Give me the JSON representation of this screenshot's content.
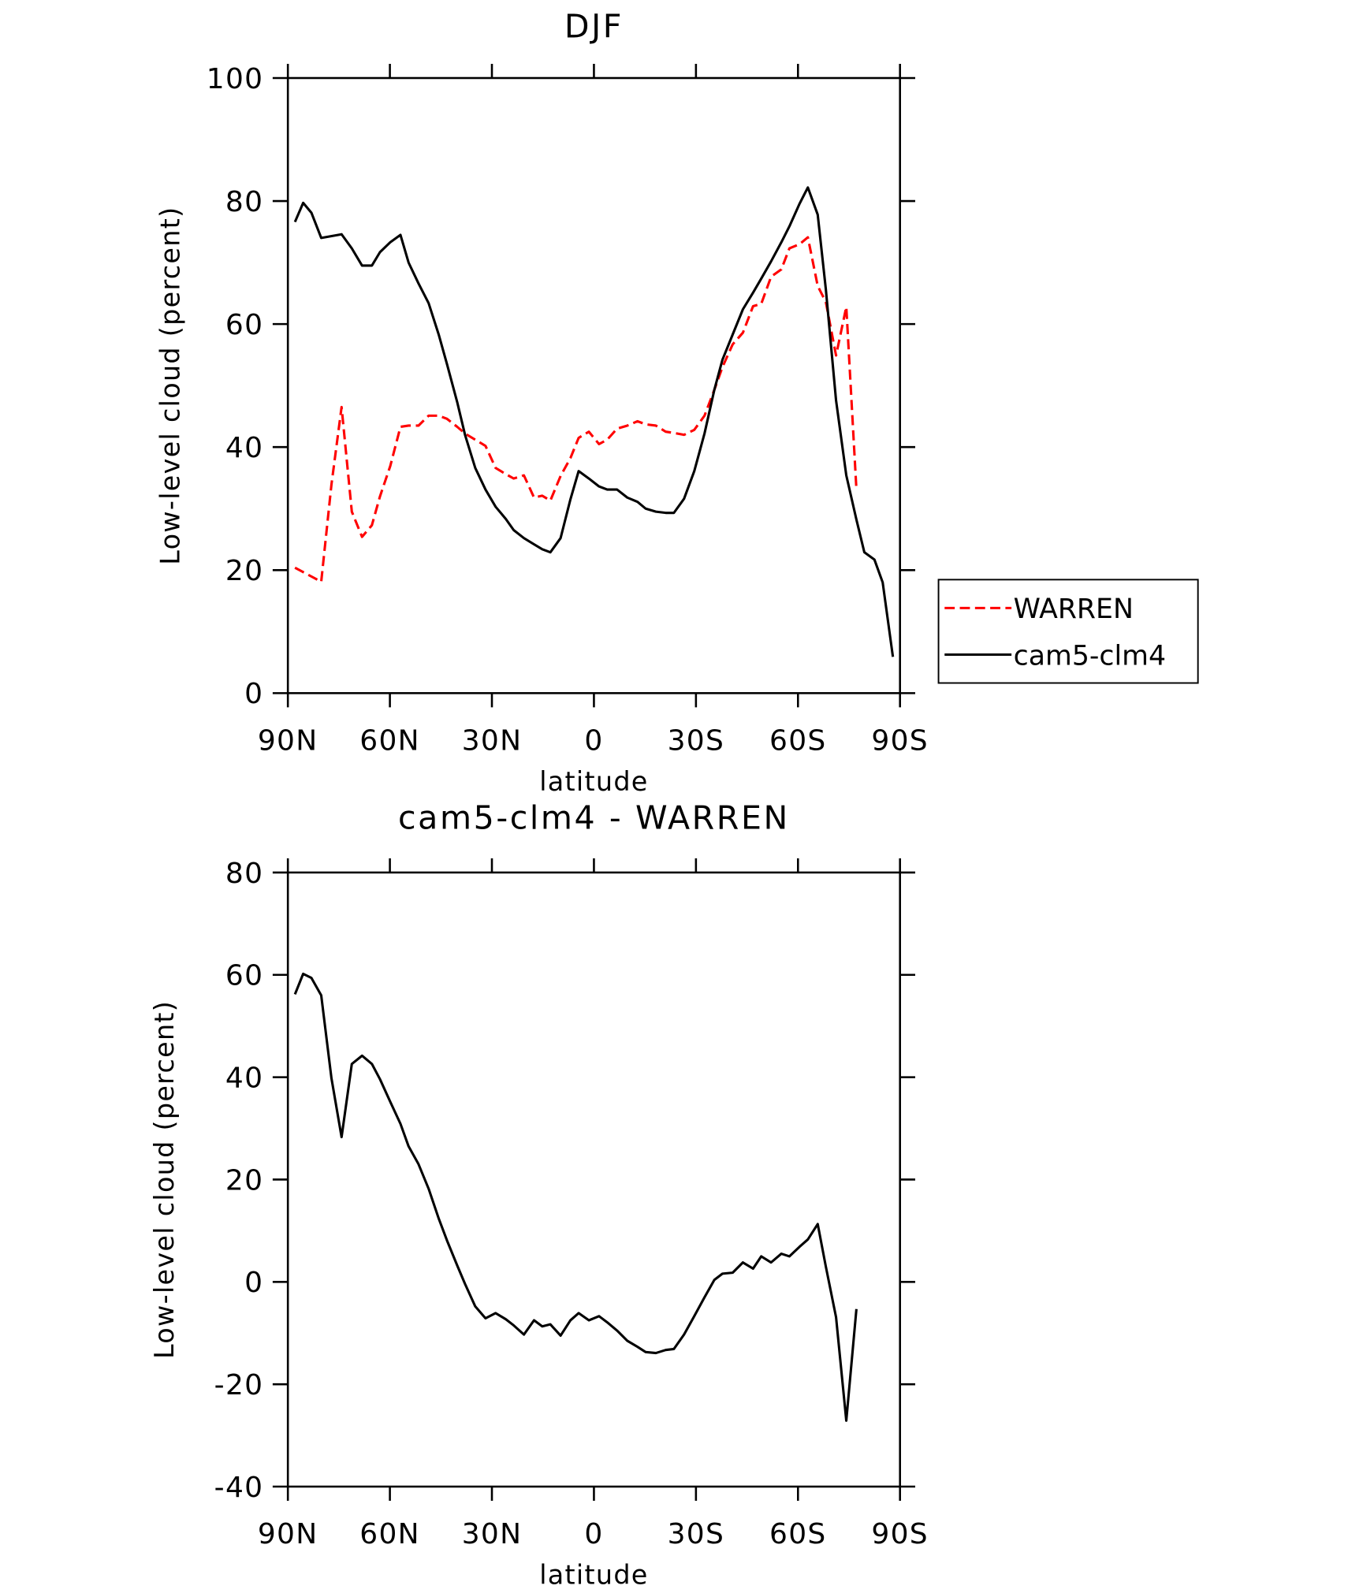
{
  "chart_data": [
    {
      "type": "line",
      "title": "DJF",
      "x_label": "latitude",
      "y_label": "Low-level cloud (percent)",
      "xlim": [
        90,
        -90
      ],
      "xticks": [
        {
          "value": 90,
          "label": "90N"
        },
        {
          "value": 60,
          "label": "60N"
        },
        {
          "value": 30,
          "label": "30N"
        },
        0,
        {
          "value": -30,
          "label": "30S"
        },
        {
          "value": -60,
          "label": "60S"
        },
        {
          "value": -90,
          "label": "90S"
        }
      ],
      "ylim": [
        0,
        100
      ],
      "yticks": [
        0,
        20,
        40,
        60,
        80,
        100
      ],
      "legend": "right",
      "series": [
        {
          "name": "WARREN",
          "color": "#ff0000",
          "dash": true,
          "x": [
            87.9,
            80.2,
            77.2,
            74.2,
            71.2,
            68.2,
            65.3,
            62.9,
            59.9,
            56.9,
            54.5,
            51.6,
            48.6,
            45.6,
            43.2,
            40.2,
            37.9,
            34.9,
            31.9,
            28.9,
            25.9,
            23.6,
            20.6,
            17.6,
            15.2,
            12.8,
            9.8,
            6.9,
            4.5,
            1.5,
            -1.5,
            -3.9,
            -6.8,
            -9.8,
            -12.8,
            -15.2,
            -18.2,
            -21.1,
            -23.5,
            -26.5,
            -29.5,
            -32.5,
            -35.4,
            -37.8,
            -40.8,
            -43.8,
            -46.8,
            -49.2,
            -52.1,
            -55.1,
            -57.5,
            -60.5,
            -62.9,
            -65.8,
            -68.2,
            -71.2,
            -74.2,
            -77.2
          ],
          "values": [
            20.4,
            18.1,
            33.9,
            46.5,
            29.5,
            25.4,
            27.3,
            32.0,
            36.9,
            43.3,
            43.5,
            43.5,
            45.1,
            45.1,
            44.6,
            43.3,
            42.2,
            41.2,
            40.2,
            36.6,
            35.6,
            34.9,
            35.4,
            31.8,
            32.1,
            31.3,
            35.3,
            38.2,
            41.5,
            42.5,
            40.5,
            41.2,
            43.0,
            43.5,
            44.2,
            43.7,
            43.5,
            42.5,
            42.3,
            42.0,
            42.8,
            45.1,
            49.3,
            53.0,
            56.7,
            58.6,
            62.9,
            63.3,
            67.7,
            68.9,
            72.3,
            73.0,
            74.1,
            66.2,
            63.6,
            54.9,
            62.8,
            33.1
          ]
        },
        {
          "name": "cam5-clm4",
          "color": "#000000",
          "dash": false,
          "x": [
            87.9,
            85.5,
            83.1,
            80.2,
            74.2,
            71.2,
            68.2,
            65.3,
            62.9,
            59.9,
            56.9,
            54.5,
            51.6,
            48.6,
            45.6,
            43.2,
            40.2,
            37.9,
            34.9,
            31.9,
            28.9,
            25.9,
            23.6,
            20.6,
            17.6,
            15.2,
            12.8,
            9.8,
            6.9,
            4.5,
            1.5,
            -1.5,
            -3.9,
            -6.8,
            -9.8,
            -12.8,
            -15.2,
            -18.2,
            -21.1,
            -23.5,
            -26.5,
            -29.5,
            -32.5,
            -35.4,
            -37.8,
            -40.8,
            -43.8,
            -46.8,
            -49.2,
            -52.1,
            -55.1,
            -57.5,
            -60.5,
            -62.9,
            -65.8,
            -68.2,
            -71.2,
            -74.2,
            -77.2,
            -79.5,
            -82.5,
            -84.9,
            -87.9
          ],
          "values": [
            76.6,
            79.7,
            78.1,
            74.0,
            74.6,
            72.3,
            69.5,
            69.5,
            71.7,
            73.3,
            74.5,
            70.0,
            66.6,
            63.4,
            58.2,
            53.5,
            47.3,
            42.0,
            36.6,
            33.1,
            30.3,
            28.3,
            26.5,
            25.2,
            24.2,
            23.4,
            22.9,
            25.2,
            31.5,
            36.1,
            34.9,
            33.6,
            33.1,
            33.1,
            31.8,
            31.1,
            30.0,
            29.5,
            29.3,
            29.3,
            31.6,
            36.1,
            42.2,
            49.3,
            54.2,
            58.3,
            62.4,
            65.1,
            67.4,
            70.2,
            73.3,
            75.9,
            79.6,
            82.2,
            77.8,
            65.7,
            47.6,
            35.4,
            28.2,
            22.9,
            21.7,
            18.0,
            5.9
          ]
        }
      ]
    },
    {
      "type": "line",
      "title": "cam5-clm4 - WARREN",
      "x_label": "latitude",
      "y_label": "Low-level cloud (percent)",
      "xlim": [
        90,
        -90
      ],
      "xticks": [
        {
          "value": 90,
          "label": "90N"
        },
        {
          "value": 60,
          "label": "60N"
        },
        {
          "value": 30,
          "label": "30N"
        },
        0,
        {
          "value": -30,
          "label": "30S"
        },
        {
          "value": -60,
          "label": "60S"
        },
        {
          "value": -90,
          "label": "90S"
        }
      ],
      "ylim": [
        -40,
        80
      ],
      "yticks": [
        -40,
        -20,
        0,
        20,
        40,
        60,
        80
      ],
      "legend": false,
      "series": [
        {
          "color": "#000000",
          "dash": false,
          "x": [
            87.9,
            85.5,
            83.1,
            80.2,
            77.2,
            74.2,
            71.2,
            68.2,
            65.3,
            62.9,
            59.9,
            56.9,
            54.5,
            51.6,
            48.6,
            45.6,
            43.2,
            40.2,
            37.9,
            34.9,
            31.9,
            28.9,
            25.9,
            23.6,
            20.6,
            17.6,
            15.2,
            12.8,
            9.8,
            6.9,
            4.5,
            1.5,
            -1.5,
            -3.9,
            -6.8,
            -9.8,
            -12.8,
            -15.2,
            -18.2,
            -21.1,
            -23.5,
            -26.5,
            -29.5,
            -32.5,
            -35.4,
            -37.8,
            -40.8,
            -43.8,
            -46.8,
            -49.2,
            -52.1,
            -55.1,
            -57.5,
            -60.5,
            -62.9,
            -65.8,
            -68.2,
            -71.2,
            -74.2,
            -77.2
          ],
          "values": [
            56.2,
            60.2,
            59.4,
            56.0,
            39.8,
            28.3,
            42.6,
            44.2,
            42.6,
            39.6,
            35.2,
            30.9,
            26.5,
            23.0,
            18.2,
            12.3,
            8.1,
            3.2,
            -0.4,
            -4.8,
            -7.1,
            -6.1,
            -7.3,
            -8.5,
            -10.3,
            -7.5,
            -8.7,
            -8.3,
            -10.5,
            -7.5,
            -6.1,
            -7.5,
            -6.7,
            -7.9,
            -9.5,
            -11.5,
            -12.7,
            -13.7,
            -13.9,
            -13.3,
            -13.1,
            -10.3,
            -6.7,
            -3.0,
            0.4,
            1.6,
            1.8,
            3.8,
            2.6,
            5.0,
            3.8,
            5.5,
            5.0,
            6.9,
            8.3,
            11.3,
            3.0,
            -6.9,
            -27.1,
            -5.3
          ]
        }
      ]
    }
  ]
}
